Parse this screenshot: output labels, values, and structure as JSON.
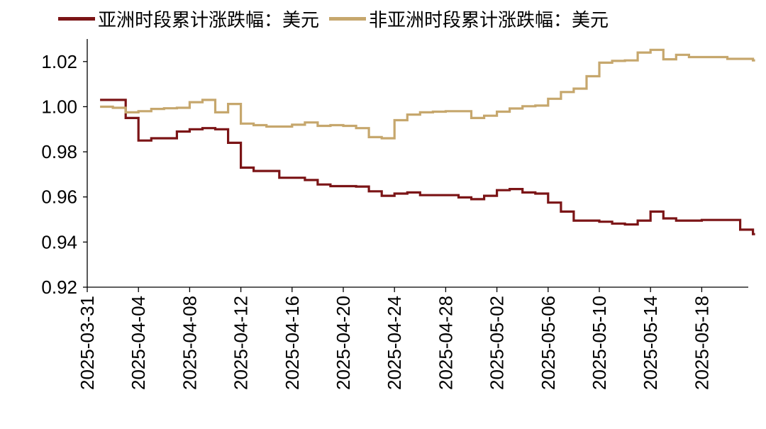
{
  "chart_data": {
    "type": "line",
    "title": "",
    "xlabel": "",
    "ylabel": "",
    "ylim": [
      0.92,
      1.03
    ],
    "yticks": [
      "0.92",
      "0.94",
      "0.96",
      "0.98",
      "1.00",
      "1.02"
    ],
    "xlim": [
      "2025-03-31",
      "2025-05-22"
    ],
    "xticks": [
      "2025-03-31",
      "2025-04-04",
      "2025-04-08",
      "2025-04-12",
      "2025-04-16",
      "2025-04-20",
      "2025-04-24",
      "2025-04-28",
      "2025-05-02",
      "2025-05-06",
      "2025-05-10",
      "2025-05-14",
      "2025-05-18"
    ],
    "legend_position": "top",
    "grid": false,
    "series": [
      {
        "name": "亚洲时段累计涨跌幅：美元",
        "color": "#7B1416",
        "step": true,
        "points": [
          [
            "2025-04-01",
            1.003
          ],
          [
            "2025-04-02",
            1.003
          ],
          [
            "2025-04-03",
            0.995
          ],
          [
            "2025-04-04",
            0.985
          ],
          [
            "2025-04-05",
            0.986
          ],
          [
            "2025-04-06",
            0.986
          ],
          [
            "2025-04-07",
            0.989
          ],
          [
            "2025-04-08",
            0.99
          ],
          [
            "2025-04-09",
            0.9905
          ],
          [
            "2025-04-10",
            0.99
          ],
          [
            "2025-04-11",
            0.984
          ],
          [
            "2025-04-12",
            0.973
          ],
          [
            "2025-04-13",
            0.9715
          ],
          [
            "2025-04-14",
            0.9715
          ],
          [
            "2025-04-15",
            0.9685
          ],
          [
            "2025-04-16",
            0.9685
          ],
          [
            "2025-04-17",
            0.9675
          ],
          [
            "2025-04-18",
            0.9655
          ],
          [
            "2025-04-19",
            0.9648
          ],
          [
            "2025-04-20",
            0.9648
          ],
          [
            "2025-04-21",
            0.9646
          ],
          [
            "2025-04-22",
            0.9625
          ],
          [
            "2025-04-23",
            0.9605
          ],
          [
            "2025-04-24",
            0.9615
          ],
          [
            "2025-04-25",
            0.962
          ],
          [
            "2025-04-26",
            0.9608
          ],
          [
            "2025-04-27",
            0.9608
          ],
          [
            "2025-04-28",
            0.9608
          ],
          [
            "2025-04-29",
            0.9598
          ],
          [
            "2025-04-30",
            0.959
          ],
          [
            "2025-05-01",
            0.9605
          ],
          [
            "2025-05-02",
            0.963
          ],
          [
            "2025-05-03",
            0.9635
          ],
          [
            "2025-05-04",
            0.962
          ],
          [
            "2025-05-05",
            0.9615
          ],
          [
            "2025-05-06",
            0.9575
          ],
          [
            "2025-05-07",
            0.9535
          ],
          [
            "2025-05-08",
            0.9495
          ],
          [
            "2025-05-09",
            0.9495
          ],
          [
            "2025-05-10",
            0.949
          ],
          [
            "2025-05-11",
            0.9482
          ],
          [
            "2025-05-12",
            0.9478
          ],
          [
            "2025-05-13",
            0.9495
          ],
          [
            "2025-05-14",
            0.9535
          ],
          [
            "2025-05-15",
            0.9505
          ],
          [
            "2025-05-16",
            0.9495
          ],
          [
            "2025-05-17",
            0.9495
          ],
          [
            "2025-05-18",
            0.9498
          ],
          [
            "2025-05-19",
            0.9498
          ],
          [
            "2025-05-20",
            0.9498
          ],
          [
            "2025-05-21",
            0.9455
          ],
          [
            "2025-05-22",
            0.9435
          ]
        ]
      },
      {
        "name": "非亚洲时段累计涨跌幅：美元",
        "color": "#C6A76D",
        "step": true,
        "points": [
          [
            "2025-04-01",
            1.0
          ],
          [
            "2025-04-02",
            0.9995
          ],
          [
            "2025-04-03",
            0.9975
          ],
          [
            "2025-04-04",
            0.998
          ],
          [
            "2025-04-05",
            0.999
          ],
          [
            "2025-04-06",
            0.9993
          ],
          [
            "2025-04-07",
            0.9995
          ],
          [
            "2025-04-08",
            1.002
          ],
          [
            "2025-04-09",
            1.003
          ],
          [
            "2025-04-10",
            0.9975
          ],
          [
            "2025-04-11",
            1.0012
          ],
          [
            "2025-04-12",
            0.9925
          ],
          [
            "2025-04-13",
            0.9918
          ],
          [
            "2025-04-14",
            0.9912
          ],
          [
            "2025-04-15",
            0.9912
          ],
          [
            "2025-04-16",
            0.992
          ],
          [
            "2025-04-17",
            0.993
          ],
          [
            "2025-04-18",
            0.9915
          ],
          [
            "2025-04-19",
            0.9918
          ],
          [
            "2025-04-20",
            0.9915
          ],
          [
            "2025-04-21",
            0.9905
          ],
          [
            "2025-04-22",
            0.9865
          ],
          [
            "2025-04-23",
            0.986
          ],
          [
            "2025-04-24",
            0.994
          ],
          [
            "2025-04-25",
            0.9965
          ],
          [
            "2025-04-26",
            0.9975
          ],
          [
            "2025-04-27",
            0.9978
          ],
          [
            "2025-04-28",
            0.998
          ],
          [
            "2025-04-29",
            0.998
          ],
          [
            "2025-04-30",
            0.995
          ],
          [
            "2025-05-01",
            0.996
          ],
          [
            "2025-05-02",
            0.9978
          ],
          [
            "2025-05-03",
            0.9992
          ],
          [
            "2025-05-04",
            1.0002
          ],
          [
            "2025-05-05",
            1.0005
          ],
          [
            "2025-05-06",
            1.0035
          ],
          [
            "2025-05-07",
            1.0065
          ],
          [
            "2025-05-08",
            1.008
          ],
          [
            "2025-05-09",
            1.0135
          ],
          [
            "2025-05-10",
            1.0195
          ],
          [
            "2025-05-11",
            1.0203
          ],
          [
            "2025-05-12",
            1.0205
          ],
          [
            "2025-05-13",
            1.024
          ],
          [
            "2025-05-14",
            1.0252
          ],
          [
            "2025-05-15",
            1.021
          ],
          [
            "2025-05-16",
            1.023
          ],
          [
            "2025-05-17",
            1.022
          ],
          [
            "2025-05-18",
            1.022
          ],
          [
            "2025-05-19",
            1.022
          ],
          [
            "2025-05-20",
            1.0212
          ],
          [
            "2025-05-21",
            1.0212
          ],
          [
            "2025-05-22",
            1.0205
          ]
        ]
      }
    ]
  }
}
